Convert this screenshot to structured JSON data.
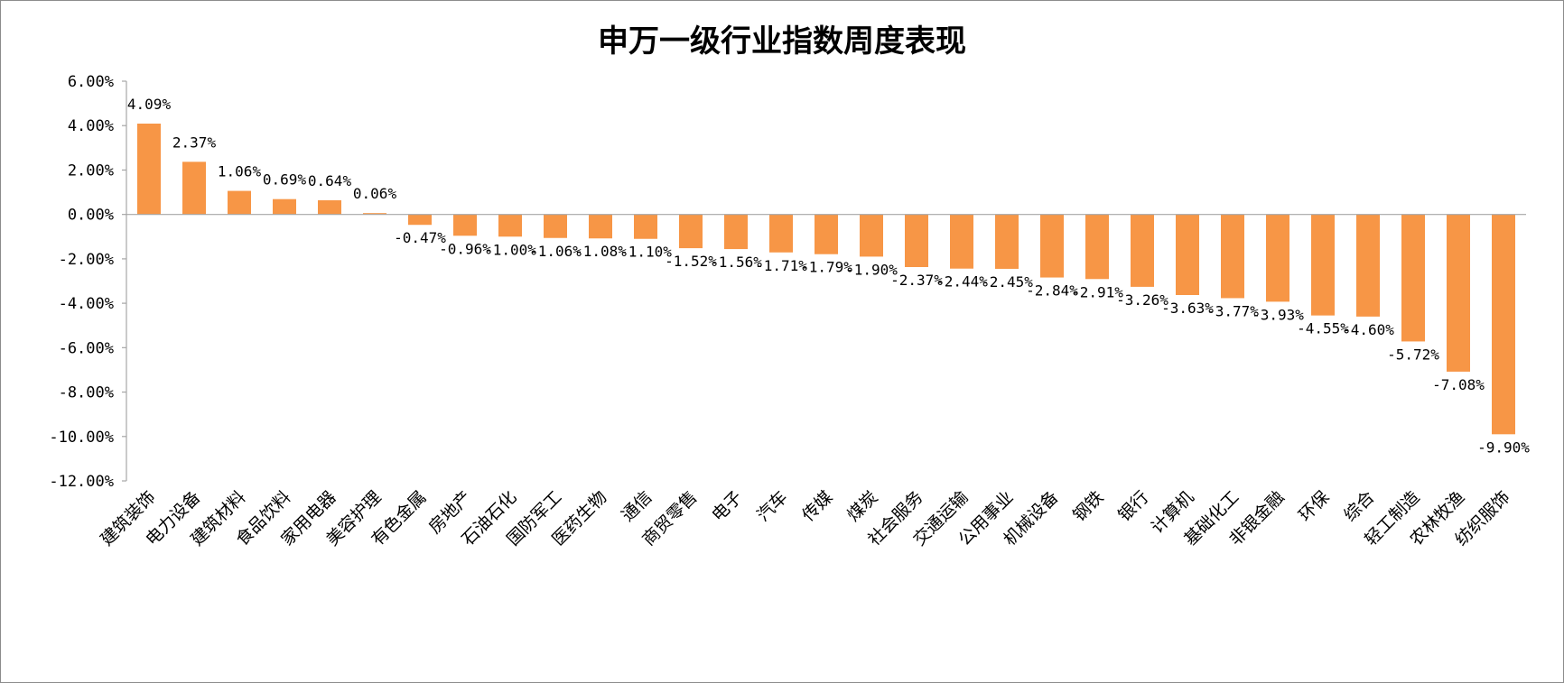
{
  "chart_data": {
    "type": "bar",
    "title": "申万一级行业指数周度表现",
    "xlabel": "",
    "ylabel": "",
    "ylim": [
      -12,
      6
    ],
    "ytick_step": 2,
    "ytick_format": "percent_2dp",
    "bar_color": "#F79646",
    "grid": false,
    "legend": "none",
    "categories": [
      "建筑装饰",
      "电力设备",
      "建筑材料",
      "食品饮料",
      "家用电器",
      "美容护理",
      "有色金属",
      "房地产",
      "石油石化",
      "国防军工",
      "医药生物",
      "通信",
      "商贸零售",
      "电子",
      "汽车",
      "传媒",
      "煤炭",
      "社会服务",
      "交通运输",
      "公用事业",
      "机械设备",
      "钢铁",
      "银行",
      "计算机",
      "基础化工",
      "非银金融",
      "环保",
      "综合",
      "轻工制造",
      "农林牧渔",
      "纺织服饰"
    ],
    "values": [
      4.09,
      2.37,
      1.06,
      0.69,
      0.64,
      0.06,
      -0.47,
      -0.96,
      -1.0,
      -1.06,
      -1.08,
      -1.1,
      -1.52,
      -1.56,
      -1.71,
      -1.79,
      -1.9,
      -2.37,
      -2.44,
      -2.45,
      -2.84,
      -2.91,
      -3.26,
      -3.63,
      -3.77,
      -3.93,
      -4.55,
      -4.6,
      -5.72,
      -7.08,
      -9.9
    ],
    "value_labels": [
      "4.09%",
      "2.37%",
      "1.06%",
      "0.69%",
      "0.64%",
      "0.06%",
      "-0.47%",
      "-0.96%",
      "-1.00%",
      "-1.06%",
      "-1.08%",
      "-1.10%",
      "-1.52%",
      "-1.56%",
      "-1.71%",
      "-1.79%",
      "-1.90%",
      "-2.37%",
      "-2.44%",
      "-2.45%",
      "-2.84%",
      "-2.91%",
      "-3.26%",
      "-3.63%",
      "-3.77%",
      "-3.93%",
      "-4.55%",
      "-4.60%",
      "-5.72%",
      "-7.08%",
      "-9.90%"
    ]
  }
}
